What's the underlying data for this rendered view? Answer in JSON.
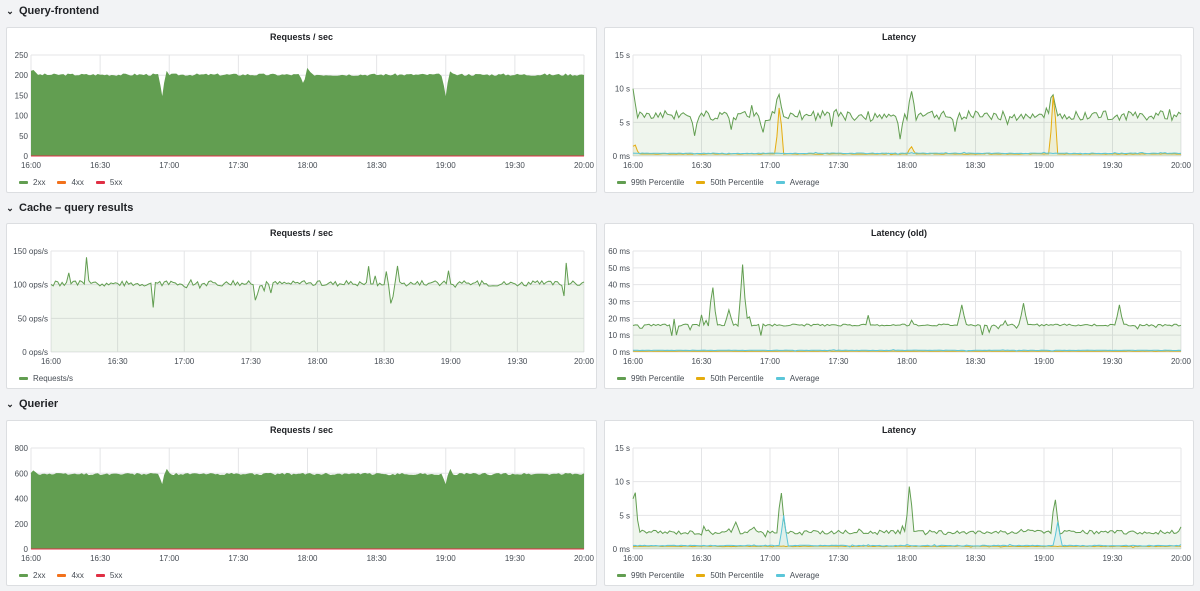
{
  "rows": [
    {
      "title": "Query-frontend"
    },
    {
      "title": "Cache – query results"
    },
    {
      "title": "Querier"
    }
  ],
  "chevron_icon": "chevron-down-icon",
  "panels": [
    {
      "title": "Requests / sec",
      "legend": [
        {
          "label": "2xx",
          "color": "#629e51"
        },
        {
          "label": "4xx",
          "color": "#f2711c"
        },
        {
          "label": "5xx",
          "color": "#e02f44"
        }
      ]
    },
    {
      "title": "Latency",
      "legend": [
        {
          "label": "99th Percentile",
          "color": "#629e51"
        },
        {
          "label": "50th Percentile",
          "color": "#e5ac0e"
        },
        {
          "label": "Average",
          "color": "#5bc6d9"
        }
      ]
    },
    {
      "title": "Requests / sec",
      "legend": [
        {
          "label": "Requests/s",
          "color": "#629e51"
        }
      ]
    },
    {
      "title": "Latency (old)",
      "legend": [
        {
          "label": "99th Percentile",
          "color": "#629e51"
        },
        {
          "label": "50th Percentile",
          "color": "#e5ac0e"
        },
        {
          "label": "Average",
          "color": "#5bc6d9"
        }
      ]
    },
    {
      "title": "Requests / sec",
      "legend": [
        {
          "label": "2xx",
          "color": "#629e51"
        },
        {
          "label": "4xx",
          "color": "#f2711c"
        },
        {
          "label": "5xx",
          "color": "#e02f44"
        }
      ]
    },
    {
      "title": "Latency",
      "legend": [
        {
          "label": "99th Percentile",
          "color": "#629e51"
        },
        {
          "label": "50th Percentile",
          "color": "#e5ac0e"
        },
        {
          "label": "Average",
          "color": "#5bc6d9"
        }
      ]
    }
  ],
  "chart_data": [
    {
      "type": "area",
      "title": "Requests / sec",
      "x_ticks": [
        "16:00",
        "16:30",
        "17:00",
        "17:30",
        "18:00",
        "18:30",
        "19:00",
        "19:30",
        "20:00"
      ],
      "y_ticks": [
        "0",
        "50",
        "100",
        "150",
        "200",
        "250"
      ],
      "ylim": [
        0,
        250
      ],
      "series": [
        {
          "name": "2xx",
          "color": "#629e51",
          "baseline": 200,
          "dips": [
            [
              16.95,
              140
            ],
            [
              17.97,
              175
            ],
            [
              19.0,
              140
            ]
          ],
          "spikes": [
            [
              16.01,
              215
            ],
            [
              16.97,
              215
            ],
            [
              18.0,
              215
            ],
            [
              19.02,
              215
            ]
          ]
        },
        {
          "name": "4xx",
          "color": "#f2711c",
          "baseline": 0
        },
        {
          "name": "5xx",
          "color": "#e02f44",
          "baseline": 0
        }
      ]
    },
    {
      "type": "line",
      "title": "Latency",
      "x_ticks": [
        "16:00",
        "16:30",
        "17:00",
        "17:30",
        "18:00",
        "18:30",
        "19:00",
        "19:30",
        "20:00"
      ],
      "y_ticks": [
        "0 ms",
        "5 s",
        "10 s",
        "15 s"
      ],
      "ylim": [
        0,
        15
      ],
      "series": [
        {
          "name": "99th Percentile",
          "color": "#629e51",
          "baseline": 6,
          "spikes": [
            [
              16.0,
              10
            ],
            [
              17.06,
              10
            ],
            [
              18.03,
              10
            ],
            [
              19.06,
              10
            ]
          ],
          "dips": [
            [
              16.45,
              3
            ],
            [
              16.95,
              3.5
            ],
            [
              17.95,
              2.5
            ]
          ]
        },
        {
          "name": "50th Percentile",
          "color": "#e5ac0e",
          "baseline": 0.3,
          "spikes": [
            [
              16.01,
              2
            ],
            [
              17.07,
              8
            ],
            [
              18.03,
              1.5
            ],
            [
              19.07,
              10
            ]
          ]
        },
        {
          "name": "Average",
          "color": "#5bc6d9",
          "baseline": 0.4
        }
      ]
    },
    {
      "type": "line",
      "title": "Requests / sec",
      "x_ticks": [
        "16:00",
        "16:30",
        "17:00",
        "17:30",
        "18:00",
        "18:30",
        "19:00",
        "19:30",
        "20:00"
      ],
      "y_ticks": [
        "0 ops/s",
        "50 ops/s",
        "100 ops/s",
        "150 ops/s"
      ],
      "ylim": [
        0,
        150
      ],
      "series": [
        {
          "name": "Requests/s",
          "color": "#629e51",
          "baseline": 102,
          "spikes": [
            [
              17.03,
              112
            ]
          ],
          "dips": [
            [
              17.02,
              94
            ],
            [
              19.03,
              96
            ]
          ]
        }
      ]
    },
    {
      "type": "line",
      "title": "Latency (old)",
      "x_ticks": [
        "16:00",
        "16:30",
        "17:00",
        "17:30",
        "18:00",
        "18:30",
        "19:00",
        "19:30",
        "20:00"
      ],
      "y_ticks": [
        "0 ms",
        "10 ms",
        "20 ms",
        "30 ms",
        "40 ms",
        "50 ms",
        "60 ms"
      ],
      "ylim": [
        0,
        60
      ],
      "series": [
        {
          "name": "99th Percentile",
          "color": "#629e51",
          "baseline": 16,
          "spikes": [
            [
              16.58,
              41
            ],
            [
              16.7,
              25
            ],
            [
              16.8,
              52
            ],
            [
              18.4,
              28
            ],
            [
              18.85,
              29
            ],
            [
              19.55,
              28
            ]
          ]
        },
        {
          "name": "50th Percentile",
          "color": "#e5ac0e",
          "baseline": 0.5
        },
        {
          "name": "Average",
          "color": "#5bc6d9",
          "baseline": 1
        }
      ]
    },
    {
      "type": "area",
      "title": "Requests / sec",
      "x_ticks": [
        "16:00",
        "16:30",
        "17:00",
        "17:30",
        "18:00",
        "18:30",
        "19:00",
        "19:30",
        "20:00"
      ],
      "y_ticks": [
        "0",
        "200",
        "400",
        "600",
        "800"
      ],
      "ylim": [
        0,
        800
      ],
      "series": [
        {
          "name": "2xx",
          "color": "#629e51",
          "baseline": 590,
          "dips": [
            [
              16.95,
              500
            ],
            [
              19.0,
              500
            ]
          ],
          "spikes": [
            [
              16.02,
              620
            ],
            [
              16.97,
              660
            ],
            [
              19.02,
              650
            ]
          ]
        },
        {
          "name": "4xx",
          "color": "#f2711c",
          "baseline": 0
        },
        {
          "name": "5xx",
          "color": "#e02f44",
          "baseline": 0
        }
      ]
    },
    {
      "type": "line",
      "title": "Latency",
      "x_ticks": [
        "16:00",
        "16:30",
        "17:00",
        "17:30",
        "18:00",
        "18:30",
        "19:00",
        "19:30",
        "20:00"
      ],
      "y_ticks": [
        "0 ms",
        "5 s",
        "10 s",
        "15 s"
      ],
      "ylim": [
        0,
        15
      ],
      "series": [
        {
          "name": "99th Percentile",
          "color": "#629e51",
          "baseline": 2.5,
          "spikes": [
            [
              16.01,
              10
            ],
            [
              16.75,
              4
            ],
            [
              17.08,
              9
            ],
            [
              18.02,
              10
            ],
            [
              19.08,
              8
            ]
          ]
        },
        {
          "name": "50th Percentile",
          "color": "#e5ac0e",
          "baseline": 0.4
        },
        {
          "name": "Average",
          "color": "#5bc6d9",
          "baseline": 0.5,
          "spikes": [
            [
              17.1,
              5
            ],
            [
              19.1,
              4
            ]
          ]
        }
      ]
    }
  ]
}
